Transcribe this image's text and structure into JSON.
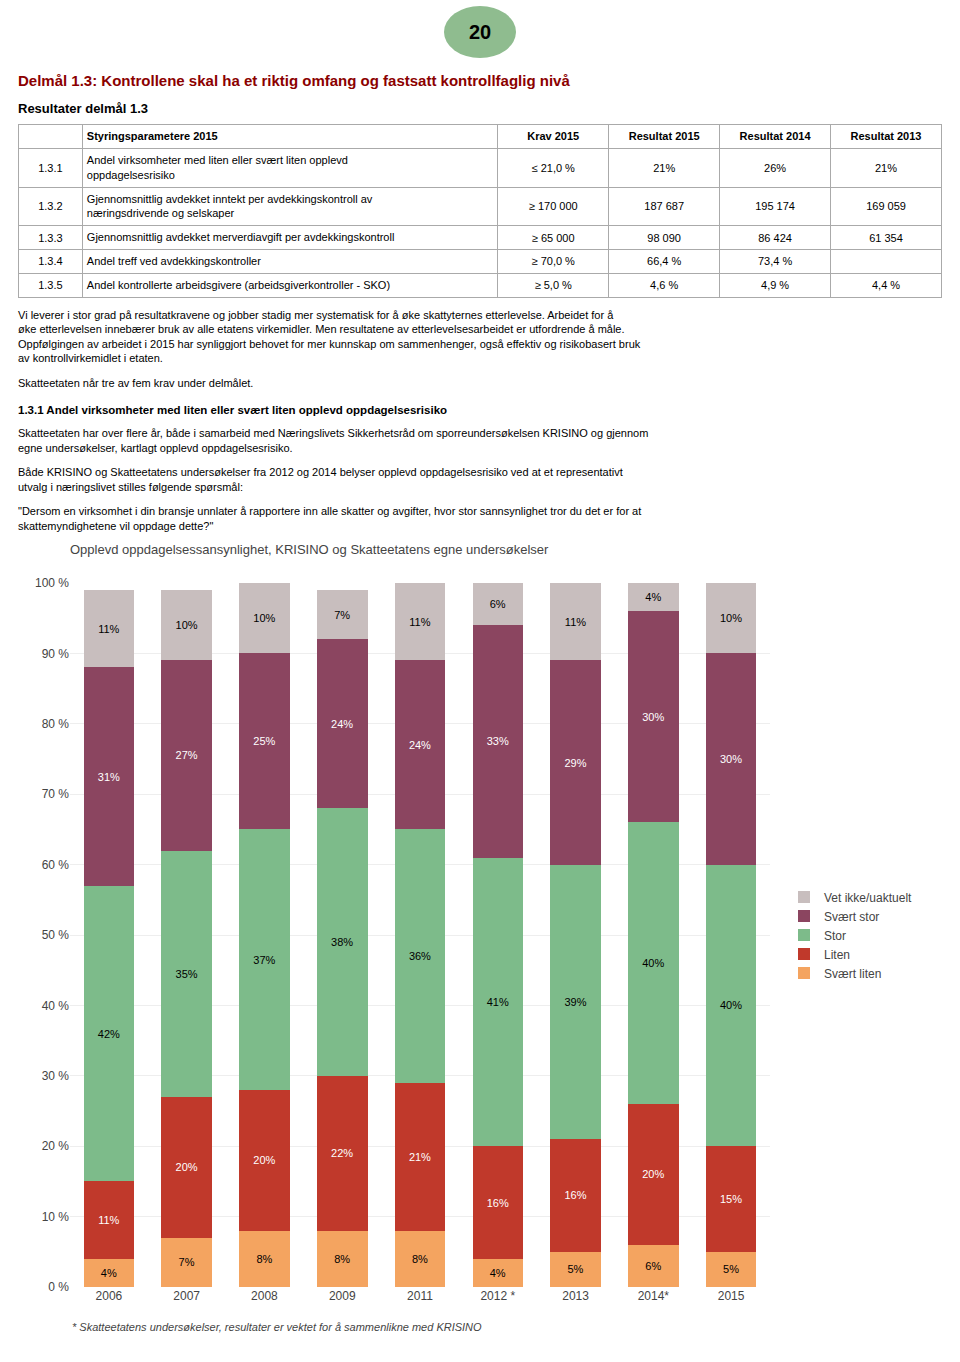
{
  "page_number": "20",
  "page_number_color": "#8fbc8f",
  "main_title": "Delmål 1.3: Kontrollene skal ha et riktig omfang og fastsatt kontrollfaglig nivå",
  "main_title_color": "#8b0000",
  "section_title": "Resultater delmål 1.3",
  "table": {
    "headers": [
      "Styringsparametere 2015",
      "Krav 2015",
      "Resultat 2015",
      "Resultat 2014",
      "Resultat 2013"
    ],
    "rows": [
      [
        "1.3.1",
        "Andel virksomheter med liten eller svært liten opplevd\noppdagelsesrisiko",
        "≤ 21,0 %",
        "21%",
        "26%",
        "21%"
      ],
      [
        "1.3.2",
        "Gjennomsnittlig avdekket inntekt per avdekkingskontroll av\nnæringsdrivende og selskaper",
        "≥ 170 000",
        "187 687",
        "195 174",
        "169 059"
      ],
      [
        "1.3.3",
        "Gjennomsnittlig avdekket merverdiavgift per avdekkingskontroll",
        "≥ 65 000",
        "98 090",
        "86 424",
        "61 354"
      ],
      [
        "1.3.4",
        "Andel treff ved avdekkingskontroller",
        "≥ 70,0 %",
        "66,4 %",
        "73,4 %",
        null
      ],
      [
        "1.3.5",
        "Andel kontrollerte arbeidsgivere (arbeidsgiverkontroller - SKO)",
        "≥ 5,0 %",
        "4,6 %",
        "4,9 %",
        "4,4 %"
      ]
    ]
  },
  "body_text1_lines": [
    "Vi leverer i stor grad på resultatkravene og jobber stadig mer systematisk for å øke skattyternes etterlevelse. Arbeidet for å",
    "øke etterlevelsen innebærer bruk av alle etatens virkemidler. Men resultatene av etterlevelsesarbeidet er utfordrende å måle.",
    "Oppfølgingen av arbeidet i 2015 har synliggjort behovet for mer kunnskap om sammenhenger, også effektiv og risikobasert bruk",
    "av kontrollvirkemidlet i etaten."
  ],
  "body_text2": "Skatteetaten når tre av fem krav under delmålet.",
  "section2_title": "1.3.1 Andel virksomheter med liten eller svært liten opplevd oppdagelsesrisiko",
  "section2_body1_lines": [
    "Skatteetaten har over flere år, både i samarbeid med Næringslivets Sikkerhetsråd om sporreundersøkelsen KRISINO og gjennom",
    "egne undersøkelser, kartlagt opplevd oppdagelsesrisiko."
  ],
  "section2_body2_lines": [
    "Både KRISINO og Skatteetatens undersøkelser fra 2012 og 2014 belyser opplevd oppdagelsesrisiko ved at et representativt",
    "utvalg i næringslivet stilles følgende spørsmål:"
  ],
  "section2_body3_lines": [
    "\"Dersom en virksomhet i din bransje unnlater å rapportere inn alle skatter og avgifter, hvor stor sannsynlighet tror du det er for at",
    "skattemyndighetene vil oppdage dette?\""
  ],
  "chart_data": {
    "type": "bar",
    "stacked": true,
    "title": "Opplevd oppdagelsessansynlighet, KRISINO og Skatteetatens egne undersøkelser",
    "categories": [
      "2006",
      "2007",
      "2008",
      "2009",
      "2011",
      "2012 *",
      "2013",
      "2014*",
      "2015"
    ],
    "series": [
      {
        "name": "Svært liten",
        "color": "#f4a460",
        "values": [
          4,
          7,
          8,
          8,
          8,
          4,
          5,
          6,
          5
        ],
        "value_labels": [
          "4%",
          "7%",
          "8%",
          "8%",
          "8%",
          "4%",
          "5%",
          "6%",
          "5%"
        ]
      },
      {
        "name": "Liten",
        "color": "#c0392b",
        "values": [
          11,
          20,
          20,
          22,
          21,
          16,
          16,
          20,
          15
        ],
        "value_labels": [
          "11%",
          "20%",
          "20%",
          "22%",
          "21%",
          "16%",
          "16%",
          "20%",
          "15%"
        ]
      },
      {
        "name": "Stor",
        "color": "#7dbb8a",
        "values": [
          42,
          35,
          37,
          38,
          36,
          41,
          39,
          40,
          40
        ],
        "value_labels": [
          "42%",
          "35%",
          "37%",
          "38%",
          "36%",
          "41%",
          "39%",
          "40%",
          "40%"
        ]
      },
      {
        "name": "Svært stor",
        "color": "#8b4560",
        "values": [
          31,
          27,
          25,
          24,
          24,
          33,
          29,
          30,
          30
        ],
        "value_labels": [
          "31%",
          "27%",
          "25%",
          "24%",
          "24%",
          "33%",
          "29%",
          "30%",
          "30%"
        ]
      },
      {
        "name": "Vet ikke/uaktuelt",
        "color": "#c8bebe",
        "values": [
          11,
          10,
          10,
          7,
          11,
          6,
          11,
          4,
          10
        ],
        "value_labels": [
          "11%",
          "10%",
          "10%",
          "7%",
          "11%",
          "6%",
          "11%",
          "4%",
          "10%"
        ]
      }
    ],
    "ylim": [
      0,
      100
    ],
    "yticks": [
      {
        "value": 0,
        "label": "0 %"
      },
      {
        "value": 10,
        "label": "10 %"
      },
      {
        "value": 20,
        "label": "20 %"
      },
      {
        "value": 30,
        "label": "30 %"
      },
      {
        "value": 40,
        "label": "40 %"
      },
      {
        "value": 50,
        "label": "50 %"
      },
      {
        "value": 60,
        "label": "60 %"
      },
      {
        "value": 70,
        "label": "70 %"
      },
      {
        "value": 80,
        "label": "80 %"
      },
      {
        "value": 90,
        "label": "90 %"
      },
      {
        "value": 100,
        "label": "100 %"
      }
    ],
    "grid": true,
    "legend": "right",
    "data_labels": true,
    "annotations": [
      "* Skatteetatens undersøkelser, resultater er vektet for å sammenlikne med KRISINO"
    ]
  }
}
